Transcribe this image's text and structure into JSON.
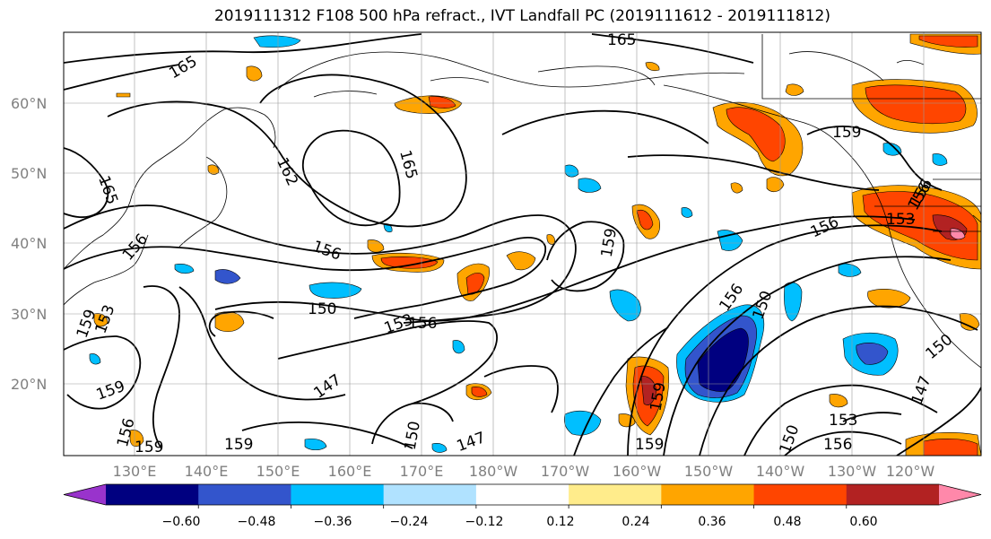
{
  "title": "2019111312 F108 500 hPa refract., IVT Landfall PC (2019111612 - 2019111812)",
  "lat_labels": [
    "60°N",
    "50°N",
    "40°N",
    "30°N",
    "20°N"
  ],
  "lon_labels": [
    "130°E",
    "140°E",
    "150°E",
    "160°E",
    "170°E",
    "180°W",
    "170°W",
    "160°W",
    "150°W",
    "140°W",
    "130°W",
    "120°W"
  ],
  "contour_labels": [
    "165",
    "165",
    "165",
    "165",
    "162",
    "159",
    "159",
    "159",
    "159",
    "159",
    "159",
    "159",
    "156",
    "156",
    "156",
    "156",
    "156",
    "156",
    "156",
    "156",
    "153",
    "153",
    "153",
    "153",
    "150",
    "150",
    "150",
    "150",
    "150",
    "147",
    "147",
    "147",
    "159",
    "156",
    "156"
  ],
  "colorbar": {
    "ticks": [
      "−0.60",
      "−0.48",
      "−0.36",
      "−0.24",
      "−0.12",
      "0.12",
      "0.24",
      "0.36",
      "0.48",
      "0.60"
    ],
    "colors": [
      "#9933cc",
      "#000080",
      "#3355cc",
      "#00bfff",
      "#b0e2ff",
      "#ffffff",
      "#ffec8b",
      "#ffa500",
      "#ff4500",
      "#b22222",
      "#ff88aa"
    ]
  }
}
